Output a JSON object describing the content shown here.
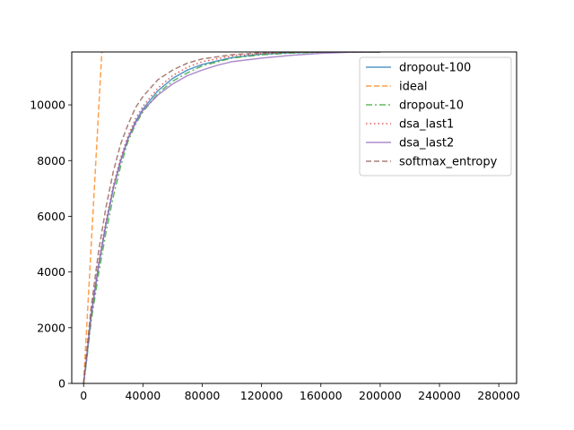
{
  "chart_data": {
    "type": "line",
    "title": "",
    "xlabel": "",
    "ylabel": "",
    "xlim": [
      -8000,
      292000
    ],
    "ylim": [
      0,
      11900
    ],
    "xticks": [
      0,
      40000,
      80000,
      120000,
      160000,
      200000,
      240000,
      280000
    ],
    "yticks": [
      0,
      2000,
      4000,
      6000,
      8000,
      10000
    ],
    "grid": false,
    "legend_position": "upper right",
    "series": [
      {
        "name": "dropout-100",
        "color": "#1f77b4",
        "dash": "solid",
        "x": [
          0,
          2000,
          5000,
          10000,
          15000,
          20000,
          25000,
          30000,
          35000,
          40000,
          50000,
          60000,
          70000,
          80000,
          100000,
          120000,
          140000,
          160000,
          180000,
          200000
        ],
        "y": [
          0,
          900,
          2400,
          4200,
          5700,
          7000,
          8000,
          8800,
          9400,
          9850,
          10500,
          10950,
          11250,
          11450,
          11700,
          11820,
          11870,
          11890,
          11900,
          11900
        ]
      },
      {
        "name": "ideal",
        "color": "#ff7f0e",
        "dash": "dashed",
        "x": [
          0,
          12300
        ],
        "y": [
          0,
          11900
        ]
      },
      {
        "name": "dropout-10",
        "color": "#2ca02c",
        "dash": "dashdot",
        "x": [
          0,
          2000,
          5000,
          10000,
          15000,
          20000,
          25000,
          30000,
          35000,
          40000,
          50000,
          60000,
          70000,
          80000,
          100000,
          120000,
          140000,
          160000,
          180000,
          200000
        ],
        "y": [
          0,
          800,
          2200,
          3900,
          5400,
          6700,
          7800,
          8700,
          9300,
          9750,
          10400,
          10850,
          11150,
          11400,
          11680,
          11800,
          11860,
          11890,
          11900,
          11900
        ]
      },
      {
        "name": "dsa_last1",
        "color": "#d62728",
        "dash": "dotted",
        "x": [
          0,
          2000,
          5000,
          10000,
          15000,
          20000,
          25000,
          30000,
          35000,
          40000,
          50000,
          60000,
          70000,
          80000,
          100000,
          120000,
          140000,
          160000,
          180000,
          200000
        ],
        "y": [
          0,
          950,
          2500,
          4300,
          5800,
          7100,
          8100,
          8900,
          9500,
          9950,
          10600,
          11050,
          11350,
          11550,
          11760,
          11850,
          11890,
          11900,
          11900,
          11900
        ]
      },
      {
        "name": "dsa_last2",
        "color": "#9467bd",
        "dash": "solid",
        "x": [
          0,
          2000,
          5000,
          10000,
          15000,
          20000,
          25000,
          30000,
          35000,
          40000,
          50000,
          60000,
          70000,
          80000,
          90000,
          100000,
          120000,
          140000,
          160000,
          180000,
          200000
        ],
        "y": [
          0,
          900,
          2400,
          4200,
          5700,
          7000,
          8000,
          8800,
          9350,
          9800,
          10350,
          10750,
          11050,
          11250,
          11420,
          11550,
          11680,
          11780,
          11850,
          11890,
          11900
        ]
      },
      {
        "name": "softmax_entropy",
        "color": "#8c564b",
        "dash": "dashed",
        "x": [
          0,
          2000,
          5000,
          10000,
          15000,
          20000,
          25000,
          30000,
          35000,
          40000,
          50000,
          60000,
          70000,
          80000,
          100000,
          120000,
          140000,
          160000,
          180000,
          200000
        ],
        "y": [
          0,
          1100,
          2700,
          4700,
          6300,
          7600,
          8600,
          9300,
          9900,
          10300,
          10900,
          11250,
          11500,
          11650,
          11800,
          11870,
          11900,
          11900,
          11900,
          11900
        ]
      }
    ]
  }
}
